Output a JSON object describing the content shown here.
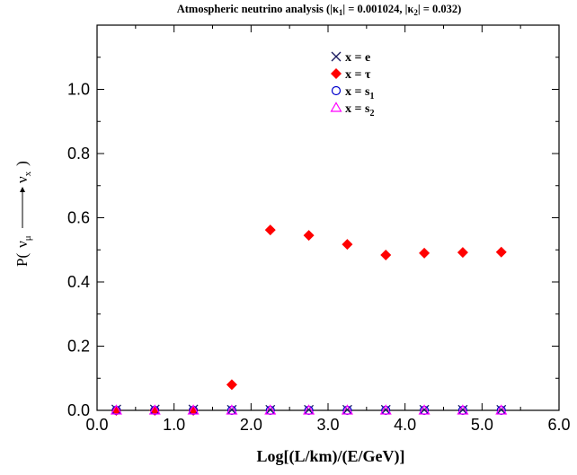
{
  "chart_data": {
    "type": "scatter",
    "title": {
      "pre": "Atmospheric neutrino analysis (|κ",
      "sub1": "1",
      "mid": "| = 0.001024, |κ",
      "sub2": "2",
      "post": "| = 0.032)"
    },
    "xlabel": "Log[(L/km)/(E/GeV)]",
    "ylabel": {
      "prefix": "P(",
      "nu": "ν",
      "mu": "μ",
      "nu2": "ν",
      "x": "x",
      "suffix": ")"
    },
    "xlim": [
      0,
      6
    ],
    "ylim": [
      0,
      1.2
    ],
    "xticks": [
      "0.0",
      "1.0",
      "2.0",
      "3.0",
      "4.0",
      "5.0",
      "6.0"
    ],
    "yticks": [
      "0.0",
      "0.2",
      "0.4",
      "0.6",
      "0.8",
      "1.0"
    ],
    "x": [
      0.25,
      0.75,
      1.25,
      1.75,
      2.25,
      2.75,
      3.25,
      3.75,
      4.25,
      4.75,
      5.25
    ],
    "series": [
      {
        "name": "x = e",
        "label": {
          "main": "x = e",
          "sub": ""
        },
        "marker": "x-cross",
        "color": "#1a1a60",
        "values": [
          0.003,
          0.003,
          0.003,
          0.002,
          0.002,
          0.002,
          0.002,
          0.002,
          0.002,
          0.002,
          0.002
        ]
      },
      {
        "name": "x = τ",
        "label": {
          "main": "x = τ",
          "sub": ""
        },
        "marker": "diamond",
        "color": "#ff0000",
        "values": [
          0.0,
          0.0,
          0.0,
          0.08,
          0.562,
          0.545,
          0.517,
          0.484,
          0.49,
          0.492,
          0.493
        ]
      },
      {
        "name": "x = s1",
        "label": {
          "main": "x = s",
          "sub": "1"
        },
        "marker": "circle",
        "color": "#0000cc",
        "values": [
          0.0,
          0.0,
          0.0,
          0.0,
          0.0,
          0.0,
          0.0,
          0.0,
          0.0,
          0.0,
          0.0
        ]
      },
      {
        "name": "x = s2",
        "label": {
          "main": "x = s",
          "sub": "2"
        },
        "marker": "triangle",
        "color": "#ff00ff",
        "values": [
          0.0,
          0.0,
          0.0,
          0.0,
          0.0,
          0.0,
          0.0,
          0.0,
          0.0,
          0.0,
          0.0
        ]
      }
    ],
    "legend": "top-center",
    "grid": false
  }
}
